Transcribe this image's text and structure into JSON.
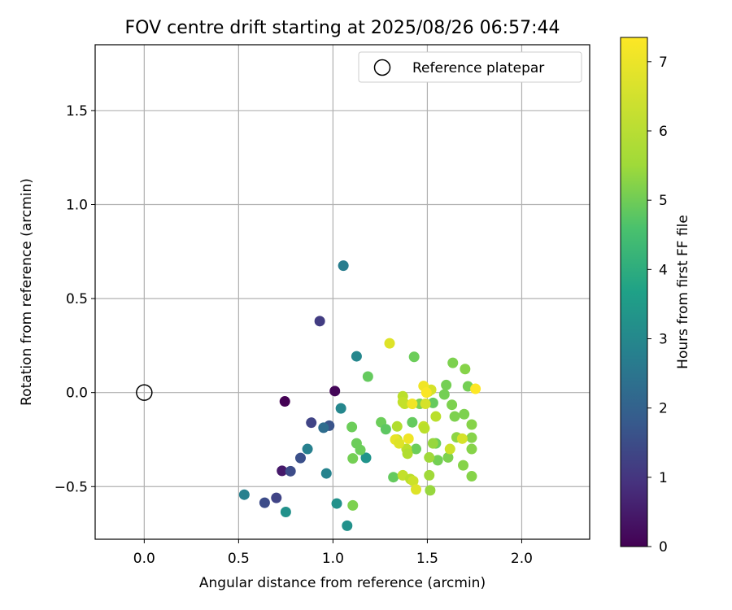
{
  "chart_data": {
    "type": "scatter",
    "title": "FOV centre drift starting at 2025/08/26 06:57:44",
    "xlabel": "Angular distance from reference (arcmin)",
    "ylabel": "Rotation from reference (arcmin)",
    "xlim": [
      -0.26,
      2.36
    ],
    "ylim": [
      -0.78,
      1.85
    ],
    "xticks": [
      0.0,
      0.5,
      1.0,
      1.5,
      2.0
    ],
    "xtick_labels": [
      "0.0",
      "0.5",
      "1.0",
      "1.5",
      "2.0"
    ],
    "yticks": [
      -0.5,
      0.0,
      0.5,
      1.0,
      1.5
    ],
    "ytick_labels": [
      "−0.5",
      "0.0",
      "0.5",
      "1.0",
      "1.5"
    ],
    "grid": true,
    "legend": {
      "position": "top-right",
      "entries": [
        {
          "label": "Reference platepar",
          "marker": "open-circle"
        }
      ]
    },
    "reference_point": {
      "x": 0.0,
      "y": 0.0
    },
    "colorbar": {
      "label": "Hours from first FF file",
      "colormap": "viridis",
      "range": [
        0,
        7.35
      ],
      "ticks": [
        0,
        1,
        2,
        3,
        4,
        5,
        6,
        7
      ],
      "tick_labels": [
        "0",
        "1",
        "2",
        "3",
        "4",
        "5",
        "6",
        "7"
      ]
    },
    "points": [
      {
        "x": 0.745,
        "y": -0.047,
        "h": 0.0
      },
      {
        "x": 1.01,
        "y": 0.008,
        "h": 0.1
      },
      {
        "x": 0.73,
        "y": -0.416,
        "h": 0.5
      },
      {
        "x": 0.775,
        "y": -0.418,
        "h": 1.7
      },
      {
        "x": 0.885,
        "y": -0.16,
        "h": 1.5
      },
      {
        "x": 0.93,
        "y": 0.38,
        "h": 1.3
      },
      {
        "x": 0.7,
        "y": -0.56,
        "h": 1.5
      },
      {
        "x": 0.638,
        "y": -0.586,
        "h": 1.7
      },
      {
        "x": 0.828,
        "y": -0.348,
        "h": 1.8
      },
      {
        "x": 0.98,
        "y": -0.176,
        "h": 1.9
      },
      {
        "x": 0.95,
        "y": -0.187,
        "h": 2.6
      },
      {
        "x": 1.055,
        "y": 0.675,
        "h": 3.1
      },
      {
        "x": 0.53,
        "y": -0.543,
        "h": 3.2
      },
      {
        "x": 0.865,
        "y": -0.3,
        "h": 3.2
      },
      {
        "x": 0.965,
        "y": -0.43,
        "h": 3.3
      },
      {
        "x": 1.125,
        "y": 0.193,
        "h": 3.4
      },
      {
        "x": 1.042,
        "y": -0.084,
        "h": 3.4
      },
      {
        "x": 0.75,
        "y": -0.635,
        "h": 3.7
      },
      {
        "x": 1.02,
        "y": -0.59,
        "h": 3.7
      },
      {
        "x": 1.075,
        "y": -0.708,
        "h": 3.7
      },
      {
        "x": 1.175,
        "y": -0.347,
        "h": 3.8
      },
      {
        "x": 1.185,
        "y": 0.085,
        "h": 5.6
      },
      {
        "x": 1.1,
        "y": -0.183,
        "h": 5.7
      },
      {
        "x": 1.125,
        "y": -0.27,
        "h": 5.7
      },
      {
        "x": 1.145,
        "y": -0.305,
        "h": 5.7
      },
      {
        "x": 1.105,
        "y": -0.35,
        "h": 5.8
      },
      {
        "x": 1.105,
        "y": -0.6,
        "h": 5.9
      },
      {
        "x": 1.255,
        "y": -0.158,
        "h": 5.7
      },
      {
        "x": 1.28,
        "y": -0.195,
        "h": 5.5
      },
      {
        "x": 1.32,
        "y": -0.45,
        "h": 5.6
      },
      {
        "x": 1.43,
        "y": 0.19,
        "h": 5.7
      },
      {
        "x": 1.42,
        "y": -0.158,
        "h": 5.6
      },
      {
        "x": 1.44,
        "y": -0.3,
        "h": 5.7
      },
      {
        "x": 1.46,
        "y": -0.06,
        "h": 5.9
      },
      {
        "x": 1.53,
        "y": -0.055,
        "h": 5.6
      },
      {
        "x": 1.545,
        "y": -0.27,
        "h": 5.7
      },
      {
        "x": 1.555,
        "y": -0.36,
        "h": 5.8
      },
      {
        "x": 1.6,
        "y": 0.04,
        "h": 5.8
      },
      {
        "x": 1.59,
        "y": -0.01,
        "h": 5.8
      },
      {
        "x": 1.61,
        "y": -0.345,
        "h": 5.9
      },
      {
        "x": 1.635,
        "y": 0.158,
        "h": 5.9
      },
      {
        "x": 1.63,
        "y": -0.065,
        "h": 5.9
      },
      {
        "x": 1.645,
        "y": -0.127,
        "h": 5.9
      },
      {
        "x": 1.695,
        "y": -0.115,
        "h": 5.9
      },
      {
        "x": 1.7,
        "y": 0.125,
        "h": 6.0
      },
      {
        "x": 1.715,
        "y": 0.033,
        "h": 5.8
      },
      {
        "x": 1.735,
        "y": -0.17,
        "h": 6.0
      },
      {
        "x": 1.735,
        "y": -0.24,
        "h": 6.0
      },
      {
        "x": 1.735,
        "y": -0.3,
        "h": 6.0
      },
      {
        "x": 1.735,
        "y": -0.445,
        "h": 6.0
      },
      {
        "x": 1.69,
        "y": -0.387,
        "h": 6.0
      },
      {
        "x": 1.655,
        "y": -0.238,
        "h": 6.1
      },
      {
        "x": 1.515,
        "y": -0.52,
        "h": 6.2
      },
      {
        "x": 1.51,
        "y": -0.44,
        "h": 6.3
      },
      {
        "x": 1.51,
        "y": -0.345,
        "h": 6.3
      },
      {
        "x": 1.53,
        "y": -0.27,
        "h": 6.2
      },
      {
        "x": 1.545,
        "y": -0.127,
        "h": 6.6
      },
      {
        "x": 1.34,
        "y": -0.18,
        "h": 6.5
      },
      {
        "x": 1.34,
        "y": -0.25,
        "h": 6.7
      },
      {
        "x": 1.37,
        "y": -0.02,
        "h": 6.6
      },
      {
        "x": 1.37,
        "y": -0.05,
        "h": 6.7
      },
      {
        "x": 1.38,
        "y": -0.06,
        "h": 6.7
      },
      {
        "x": 1.39,
        "y": -0.3,
        "h": 6.6
      },
      {
        "x": 1.395,
        "y": -0.325,
        "h": 6.5
      },
      {
        "x": 1.37,
        "y": -0.44,
        "h": 6.7
      },
      {
        "x": 1.41,
        "y": -0.46,
        "h": 6.6
      },
      {
        "x": 1.425,
        "y": -0.47,
        "h": 6.8
      },
      {
        "x": 1.44,
        "y": -0.515,
        "h": 7.0
      },
      {
        "x": 1.48,
        "y": -0.18,
        "h": 6.7
      },
      {
        "x": 1.485,
        "y": -0.19,
        "h": 6.6
      },
      {
        "x": 1.49,
        "y": -0.06,
        "h": 6.9
      },
      {
        "x": 1.5,
        "y": 0.01,
        "h": 6.9
      },
      {
        "x": 1.505,
        "y": 0.005,
        "h": 6.8
      },
      {
        "x": 1.52,
        "y": 0.015,
        "h": 6.9
      },
      {
        "x": 1.62,
        "y": -0.3,
        "h": 6.8
      },
      {
        "x": 1.685,
        "y": -0.245,
        "h": 6.9
      },
      {
        "x": 1.3,
        "y": 0.262,
        "h": 7.0
      },
      {
        "x": 1.33,
        "y": -0.25,
        "h": 7.1
      },
      {
        "x": 1.35,
        "y": -0.27,
        "h": 7.0
      },
      {
        "x": 1.42,
        "y": -0.06,
        "h": 7.2
      },
      {
        "x": 1.4,
        "y": -0.245,
        "h": 7.2
      },
      {
        "x": 1.48,
        "y": 0.035,
        "h": 7.2
      },
      {
        "x": 1.495,
        "y": 0.0,
        "h": 7.3
      },
      {
        "x": 1.755,
        "y": 0.02,
        "h": 7.35
      }
    ]
  }
}
